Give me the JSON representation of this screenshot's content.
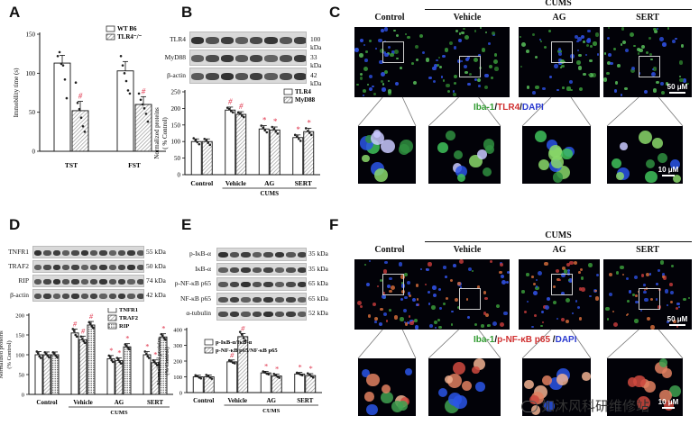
{
  "panels": {
    "A": {
      "label": "A"
    },
    "B": {
      "label": "B"
    },
    "C": {
      "label": "C"
    },
    "D": {
      "label": "D"
    },
    "E": {
      "label": "E"
    },
    "F": {
      "label": "F"
    }
  },
  "colors": {
    "accent": "#e0334b",
    "bar_open": "#ffffff",
    "bar_hatch": "#9a9a9a",
    "axis": "#111111"
  },
  "blots": {
    "B": {
      "bands": [
        {
          "name": "TLR4",
          "kda": "100 kDa"
        },
        {
          "name": "MyD88",
          "kda": "33 kDa"
        },
        {
          "name": "β-actin",
          "kda": "42 kDa"
        }
      ]
    },
    "D": {
      "bands": [
        {
          "name": "TNFR1",
          "kda": "55 kDa"
        },
        {
          "name": "TRAF2",
          "kda": "50 kDa"
        },
        {
          "name": "RIP",
          "kda": "74 kDa"
        },
        {
          "name": "β-actin",
          "kda": "42 kDa"
        }
      ]
    },
    "E": {
      "bands": [
        {
          "name": "p-IκB-α",
          "kda": "35 kDa"
        },
        {
          "name": "IκB-α",
          "kda": "35 kDa"
        },
        {
          "name": "p-NF-κB p65",
          "kda": "65 kDa"
        },
        {
          "name": "NF-κB p65",
          "kda": "65 kDa"
        },
        {
          "name": "α-tubulin",
          "kda": "52 kDa"
        }
      ]
    }
  },
  "micrographs": {
    "C": {
      "group_label": "CUMS",
      "titles": [
        "Control",
        "Vehicle",
        "AG",
        "SERT"
      ],
      "stain": {
        "a": "Iba-1",
        "sep1": "/",
        "b": "TLR4",
        "sep2": "/",
        "c": "DAPI"
      },
      "scale_top": "50 μM",
      "scale_bottom": "10 μM"
    },
    "F": {
      "group_label": "CUMS",
      "titles": [
        "Control",
        "Vehicle",
        "AG",
        "SERT"
      ],
      "stain": {
        "a": "Iba-1",
        "sep1": "/",
        "b": "p-NF-κB p65",
        "sep2": " /",
        "c": "DAPI"
      },
      "scale_top": "50 μM",
      "scale_bottom": "10 μM"
    }
  },
  "watermark": {
    "text": "如沐风科研维修站"
  },
  "chart_data": [
    {
      "panel": "A",
      "type": "bar",
      "categories": [
        "TST",
        "FST"
      ],
      "series": [
        {
          "name": "WT B6",
          "values": [
            113,
            103
          ],
          "errors": [
            10,
            12
          ],
          "points": [
            [
              122,
              127,
              112,
              110,
              92,
              68
            ],
            [
              122,
              110,
              100,
              90,
              78,
              74
            ]
          ],
          "sig": [
            "",
            ""
          ]
        },
        {
          "name": "TLR4⁻/⁻",
          "values": [
            52,
            60
          ],
          "errors": [
            12,
            10
          ],
          "points": [
            [
              88,
              62,
              54,
              43,
              32,
              25
            ],
            [
              74,
              66,
              60,
              55,
              48,
              38
            ]
          ],
          "sig": [
            "#",
            "#"
          ]
        }
      ],
      "ylabel": "Immobility time (s)",
      "ylim": [
        0,
        150
      ],
      "yticks": [
        0,
        50,
        100,
        150
      ],
      "legend": "top-right"
    },
    {
      "panel": "B",
      "type": "bar",
      "categories": [
        "Control",
        "Vehicle",
        "AG",
        "SERT"
      ],
      "group_label": "CUMS",
      "series": [
        {
          "name": "TLR4",
          "values": [
            100,
            195,
            138,
            112
          ],
          "errors": [
            8,
            9,
            10,
            8
          ],
          "points": [
            [
              110,
              104,
              98,
              92
            ],
            [
              202,
              198,
              192,
              188
            ],
            [
              148,
              142,
              134,
              128
            ],
            [
              120,
              115,
              108,
              102
            ]
          ],
          "sig": [
            "",
            "#",
            "*",
            "*"
          ]
        },
        {
          "name": "MyD88",
          "values": [
            100,
            182,
            135,
            130
          ],
          "errors": [
            8,
            8,
            9,
            10
          ],
          "points": [
            [
              108,
              103,
              96,
              90
            ],
            [
              188,
              184,
              178,
              174
            ],
            [
              144,
              138,
              130,
              124
            ],
            [
              140,
              132,
              126,
              120
            ]
          ],
          "sig": [
            "",
            "#",
            "*",
            "*"
          ]
        }
      ],
      "ylabel": "Normalized proteins\n( % Control)",
      "ylim": [
        0,
        250
      ],
      "yticks": [
        0,
        50,
        100,
        150,
        200,
        250
      ],
      "legend": "top-right"
    },
    {
      "panel": "D",
      "type": "bar",
      "categories": [
        "Control",
        "Vehicle",
        "AG",
        "SERT"
      ],
      "group_label": "CUMS",
      "series": [
        {
          "name": "TNFR1",
          "values": [
            100,
            155,
            90,
            100
          ],
          "errors": [
            8,
            10,
            8,
            8
          ],
          "points": [
            [
              108,
              104,
              96,
              92
            ],
            [
              165,
              160,
              150,
              146
            ],
            [
              98,
              94,
              86,
              82
            ],
            [
              108,
              102,
              96,
              92
            ]
          ],
          "sig": [
            "",
            "#",
            "*",
            "*"
          ]
        },
        {
          "name": "TRAF2",
          "values": [
            100,
            138,
            85,
            80
          ],
          "errors": [
            7,
            9,
            7,
            7
          ],
          "points": [
            [
              106,
              102,
              98,
              94
            ],
            [
              146,
              140,
              134,
              130
            ],
            [
              92,
              88,
              82,
              78
            ],
            [
              86,
              82,
              78,
              74
            ]
          ],
          "sig": [
            "",
            "#",
            "*",
            "*"
          ]
        },
        {
          "name": "RIP",
          "values": [
            100,
            175,
            120,
            145
          ],
          "errors": [
            7,
            9,
            8,
            8
          ],
          "points": [
            [
              106,
              103,
              98,
              94
            ],
            [
              182,
              178,
              172,
              168
            ],
            [
              126,
              122,
              118,
              114
            ],
            [
              152,
              148,
              142,
              138
            ]
          ],
          "sig": [
            "",
            "#",
            "*",
            "*"
          ]
        }
      ],
      "ylabel": "Normalized proteins\n(% Control)",
      "ylim": [
        0,
        200
      ],
      "yticks": [
        0,
        50,
        100,
        150,
        200
      ],
      "legend": "top-right"
    },
    {
      "panel": "E",
      "type": "bar",
      "categories": [
        "Control",
        "Vehicle",
        "AG",
        "SERT"
      ],
      "group_label": "CUMS",
      "series": [
        {
          "name": "p-IκB-α/IκB-α",
          "values": [
            100,
            195,
            125,
            118
          ],
          "errors": [
            10,
            12,
            10,
            10
          ],
          "points": [
            [
              110,
              104,
              96,
              90
            ],
            [
              205,
              198,
              190,
              186
            ],
            [
              134,
              128,
              120,
              116
            ],
            [
              126,
              120,
              114,
              110
            ]
          ],
          "sig": [
            "",
            "#",
            "*",
            "*"
          ]
        },
        {
          "name": "p-NF-κB p65/NF-κB p65",
          "values": [
            100,
            355,
            105,
            108
          ],
          "errors": [
            12,
            20,
            12,
            12
          ],
          "points": [
            [
              112,
              104,
              96,
              88
            ],
            [
              385,
              368,
              345,
              330
            ],
            [
              118,
              110,
              100,
              94
            ],
            [
              122,
              112,
              104,
              96
            ]
          ],
          "sig": [
            "",
            "#",
            "*",
            "*"
          ]
        }
      ],
      "ylabel": "Normalized proteins\n(% Control)",
      "ylim": [
        0,
        400
      ],
      "yticks": [
        0,
        100,
        200,
        300,
        400
      ],
      "legend": "bottom-right"
    }
  ]
}
